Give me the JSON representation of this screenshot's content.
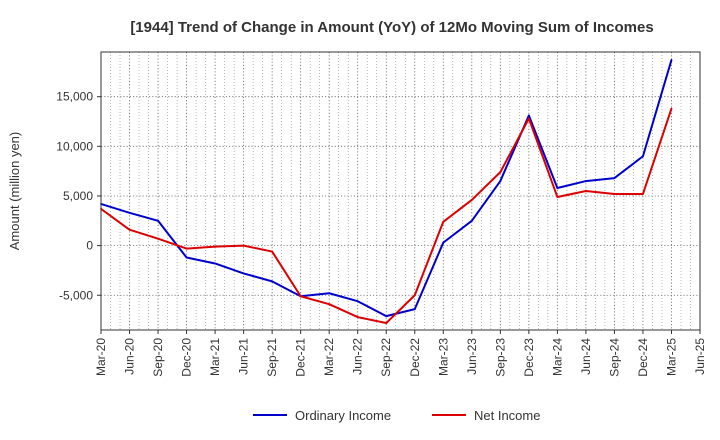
{
  "chart_data": {
    "type": "line",
    "title": "[1944]  Trend of Change in Amount (YoY) of 12Mo Moving Sum of Incomes",
    "xlabel": "",
    "ylabel": "Amount (million yen)",
    "categories": [
      "Mar-20",
      "Jun-20",
      "Sep-20",
      "Dec-20",
      "Mar-21",
      "Jun-21",
      "Sep-21",
      "Dec-21",
      "Mar-22",
      "Jun-22",
      "Sep-22",
      "Dec-22",
      "Mar-23",
      "Jun-23",
      "Sep-23",
      "Dec-23",
      "Mar-24",
      "Jun-24",
      "Sep-24",
      "Dec-24",
      "Mar-25",
      "Jun-25"
    ],
    "ylim": [
      -8500,
      19500
    ],
    "yticks": [
      -5000,
      0,
      5000,
      10000,
      15000
    ],
    "ytick_labels": [
      "-5,000",
      "0",
      "5,000",
      "10,000",
      "15,000"
    ],
    "grid": true,
    "legend_position": "bottom",
    "series": [
      {
        "name": "Ordinary Income",
        "color": "#0000cc",
        "values": [
          4200,
          3300,
          2500,
          -1200,
          -1800,
          -2800,
          -3600,
          -5100,
          -4800,
          -5600,
          -7100,
          -6400,
          300,
          2500,
          6500,
          13100,
          5800,
          6500,
          6800,
          9000,
          18700,
          null
        ]
      },
      {
        "name": "Net Income",
        "color": "#dd0000",
        "values": [
          3700,
          1600,
          700,
          -300,
          -100,
          0,
          -600,
          -5100,
          -5900,
          -7200,
          -7800,
          -5000,
          2400,
          4600,
          7400,
          12800,
          4900,
          5500,
          5200,
          5200,
          13800,
          null
        ]
      }
    ]
  }
}
